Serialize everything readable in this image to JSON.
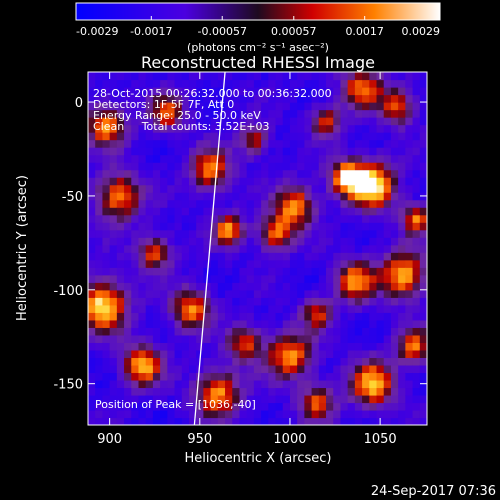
{
  "chart_data": {
    "type": "heatmap",
    "title": "Reconstructed RHESSI Image",
    "xlabel": "Heliocentric X (arcsec)",
    "ylabel": "Heliocentric Y (arcsec)",
    "xlim": [
      888,
      1076
    ],
    "ylim": [
      -172,
      16
    ],
    "xticks": [
      900,
      950,
      1000,
      1050
    ],
    "yticks": [
      -150,
      -100,
      -50,
      0
    ],
    "colorbar": {
      "label": "(photons cm⁻² s⁻¹ asec⁻²)",
      "range": [
        -0.0029,
        0.0029
      ],
      "ticks": [
        "-0.0029",
        "-0.0017",
        "-0.00057",
        "0.00057",
        "0.0017",
        "0.0029"
      ]
    },
    "annotations": [
      "28-Oct-2015 00:26:32.000 to 00:36:32.000",
      "Detectors: 1F 5F 7F, Att 0",
      "Energy Range: 25.0 - 50.0 keV",
      "Clean     Total counts: 3.52E+03"
    ],
    "peak_label": "Position of Peak = [1036,-40]",
    "peak_position": [
      1036,
      -40
    ],
    "limb_line": [
      [
        947,
        -172
      ],
      [
        964,
        16
      ]
    ],
    "blobs": [
      {
        "x": 1046,
        "y": -44,
        "v": 0.0029,
        "s": 9
      },
      {
        "x": 1031,
        "y": -40,
        "v": 0.0022,
        "s": 7
      },
      {
        "x": 1063,
        "y": -92,
        "v": 0.0024,
        "s": 9
      },
      {
        "x": 1046,
        "y": -150,
        "v": 0.0022,
        "s": 9
      },
      {
        "x": 1069,
        "y": -130,
        "v": 0.0016,
        "s": 7
      },
      {
        "x": 1036,
        "y": -95,
        "v": 0.0018,
        "s": 8
      },
      {
        "x": 1003,
        "y": -55,
        "v": 0.002,
        "s": 8
      },
      {
        "x": 992,
        "y": -70,
        "v": 0.0016,
        "s": 7
      },
      {
        "x": 1000,
        "y": -135,
        "v": 0.002,
        "s": 9
      },
      {
        "x": 960,
        "y": -155,
        "v": 0.002,
        "s": 9
      },
      {
        "x": 975,
        "y": -128,
        "v": 0.0014,
        "s": 7
      },
      {
        "x": 966,
        "y": -68,
        "v": 0.002,
        "s": 6
      },
      {
        "x": 956,
        "y": -36,
        "v": 0.0018,
        "s": 8
      },
      {
        "x": 945,
        "y": -110,
        "v": 0.0018,
        "s": 8
      },
      {
        "x": 918,
        "y": -140,
        "v": 0.0022,
        "s": 8
      },
      {
        "x": 896,
        "y": -108,
        "v": 0.0027,
        "s": 10
      },
      {
        "x": 905,
        "y": -50,
        "v": 0.002,
        "s": 9
      },
      {
        "x": 898,
        "y": -12,
        "v": 0.0019,
        "s": 8
      },
      {
        "x": 932,
        "y": -5,
        "v": 0.0014,
        "s": 7
      },
      {
        "x": 1040,
        "y": 8,
        "v": 0.0016,
        "s": 8
      },
      {
        "x": 1060,
        "y": -2,
        "v": 0.0014,
        "s": 7
      },
      {
        "x": 1070,
        "y": -62,
        "v": 0.0016,
        "s": 6
      },
      {
        "x": 925,
        "y": -80,
        "v": 0.0014,
        "s": 7
      },
      {
        "x": 1015,
        "y": -160,
        "v": 0.0014,
        "s": 7
      },
      {
        "x": 980,
        "y": -20,
        "v": 0.0012,
        "s": 6
      },
      {
        "x": 1020,
        "y": -10,
        "v": 0.0013,
        "s": 6
      },
      {
        "x": 1015,
        "y": -112,
        "v": 0.0012,
        "s": 6
      }
    ],
    "background": -0.0018
  },
  "timestamp": "24-Sep-2017 07:36"
}
